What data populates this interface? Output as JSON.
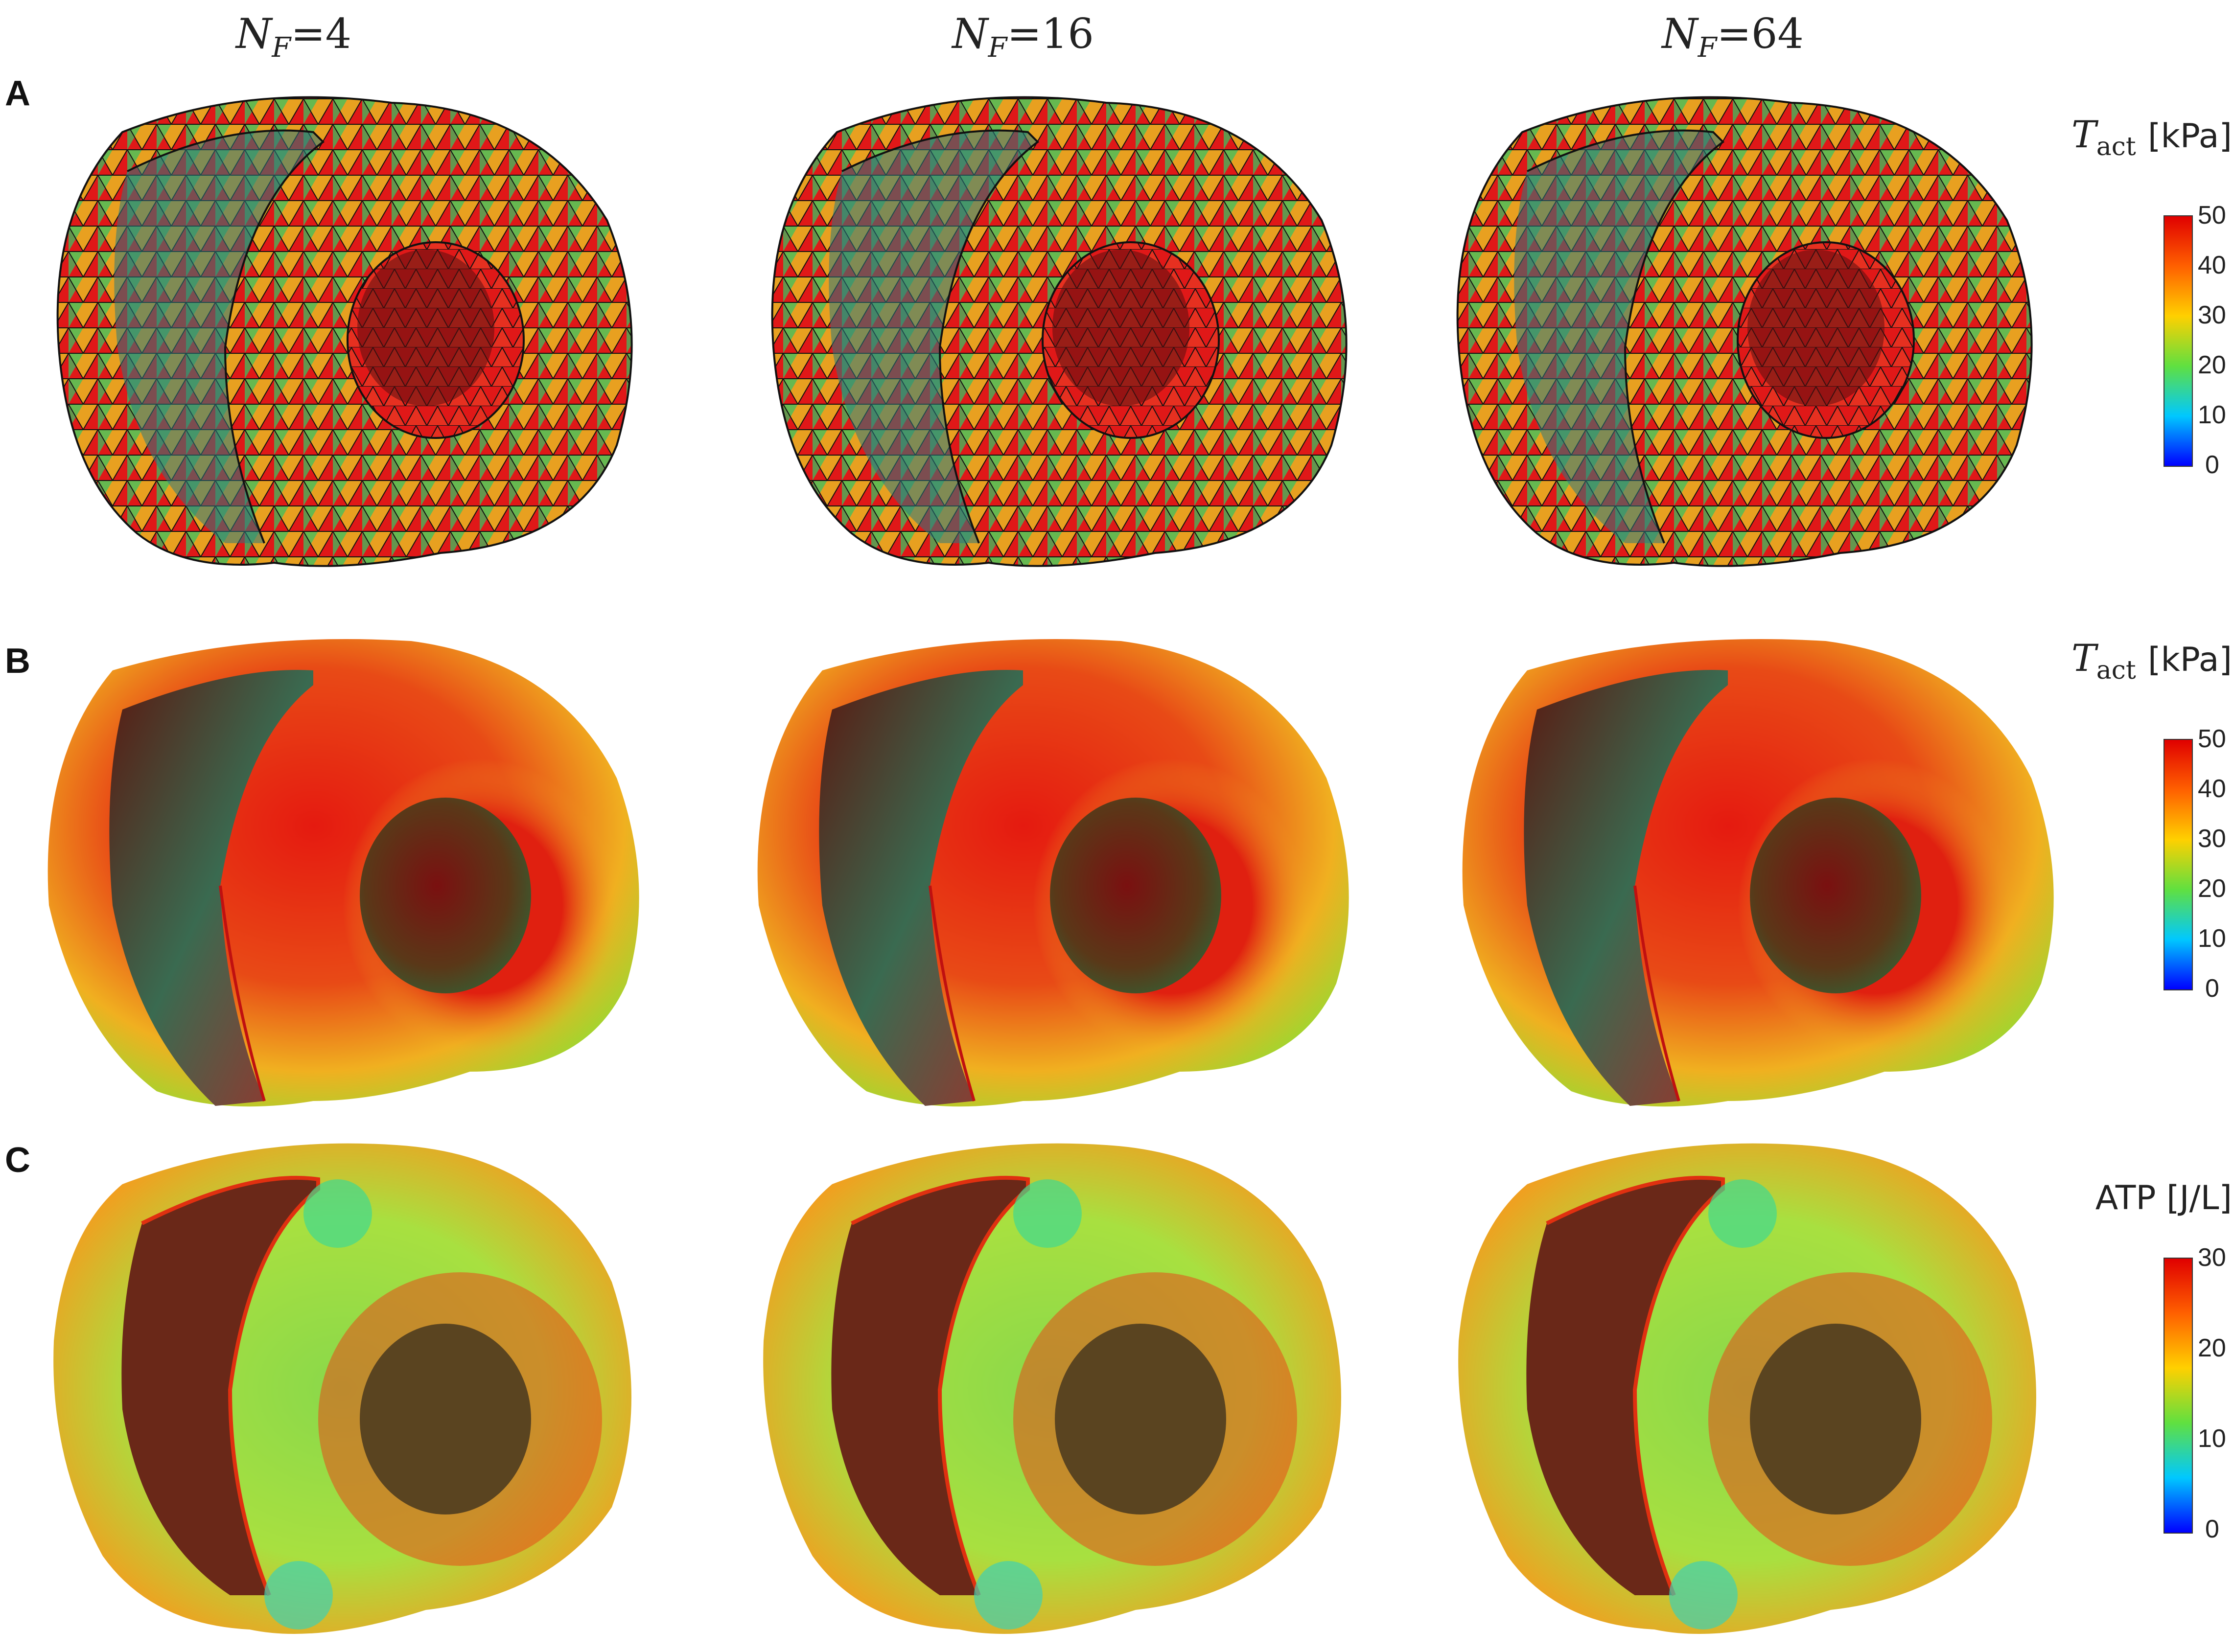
{
  "columns": [
    {
      "symbol": "N",
      "sub": "F",
      "value": "=4"
    },
    {
      "symbol": "N",
      "sub": "F",
      "value": "=16"
    },
    {
      "symbol": "N",
      "sub": "F",
      "value": "=64"
    }
  ],
  "rows": [
    {
      "letter": "A",
      "legend": {
        "symbol": "T",
        "sub": "act",
        "unit": "[kPa]",
        "ticks": [
          "50",
          "40",
          "30",
          "20",
          "10",
          "0"
        ]
      }
    },
    {
      "letter": "B",
      "legend": {
        "symbol": "T",
        "sub": "act",
        "unit": "[kPa]",
        "ticks": [
          "50",
          "40",
          "30",
          "20",
          "10",
          "0"
        ]
      }
    },
    {
      "letter": "C",
      "legend": {
        "symbol": "",
        "sub": "",
        "unit": "ATP [J/L]",
        "ticks": [
          "30",
          "20",
          "10",
          "0"
        ]
      }
    }
  ],
  "colormap": [
    "#0000ff",
    "#00bfff",
    "#00ff80",
    "#b0e000",
    "#ffd000",
    "#ff6000",
    "#e00000"
  ]
}
